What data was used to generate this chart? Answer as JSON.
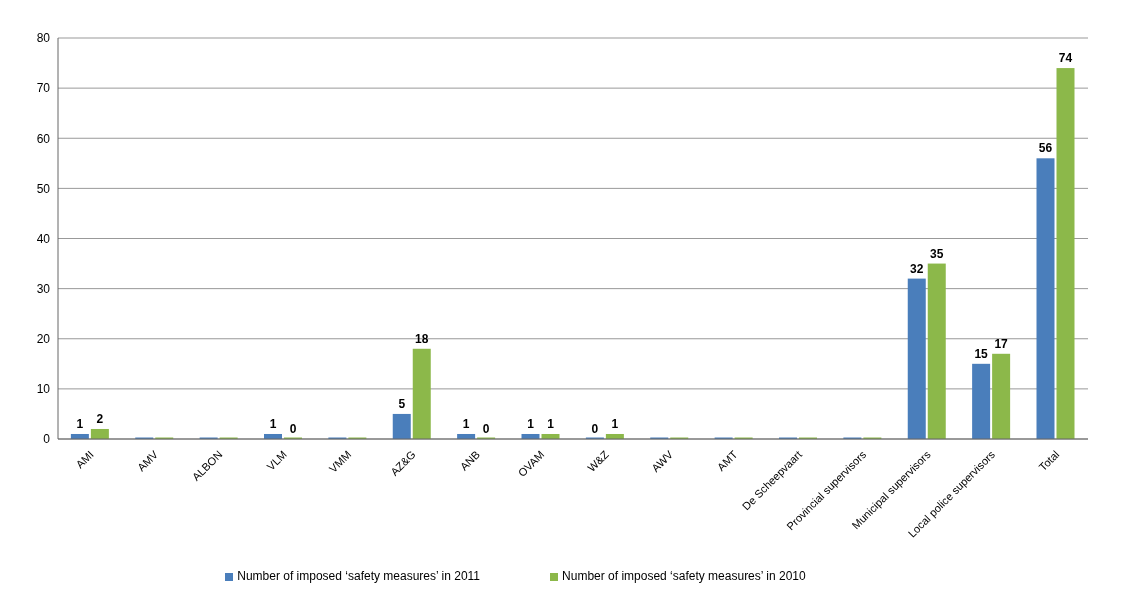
{
  "chart_data": {
    "type": "bar",
    "categories": [
      "AMI",
      "AMV",
      "ALBON",
      "VLM",
      "VMM",
      "AZ&G",
      "ANB",
      "OVAM",
      "W&Z",
      "AWV",
      "AMT",
      "De Scheepvaart",
      "Provincial supervisors",
      "Municipal supervisors",
      "Local police supervisors",
      "Total"
    ],
    "series": [
      {
        "name": "Number of imposed ‘safety measures’ in 2011",
        "color": "#4a7ebb",
        "values": [
          1,
          0,
          0,
          1,
          0,
          5,
          1,
          1,
          0,
          0,
          0,
          0,
          0,
          32,
          15,
          56
        ],
        "value_labels": [
          "1",
          null,
          null,
          "1",
          null,
          "5",
          "1",
          "1",
          "0",
          null,
          null,
          null,
          null,
          "32",
          "15",
          "56"
        ]
      },
      {
        "name": "Number of imposed ‘safety measures’ in 2010",
        "color": "#8cb84a",
        "values": [
          2,
          0,
          0,
          0,
          0,
          18,
          0,
          1,
          1,
          0,
          0,
          0,
          0,
          35,
          17,
          74
        ],
        "value_labels": [
          "2",
          null,
          null,
          "0",
          null,
          "18",
          "0",
          "1",
          "1",
          null,
          null,
          null,
          null,
          "35",
          "17",
          "74"
        ]
      }
    ],
    "ylim": [
      0,
      80
    ],
    "yticks": [
      0,
      10,
      20,
      30,
      40,
      50,
      60,
      70,
      80
    ],
    "grid": "y",
    "legend": "bottom"
  }
}
